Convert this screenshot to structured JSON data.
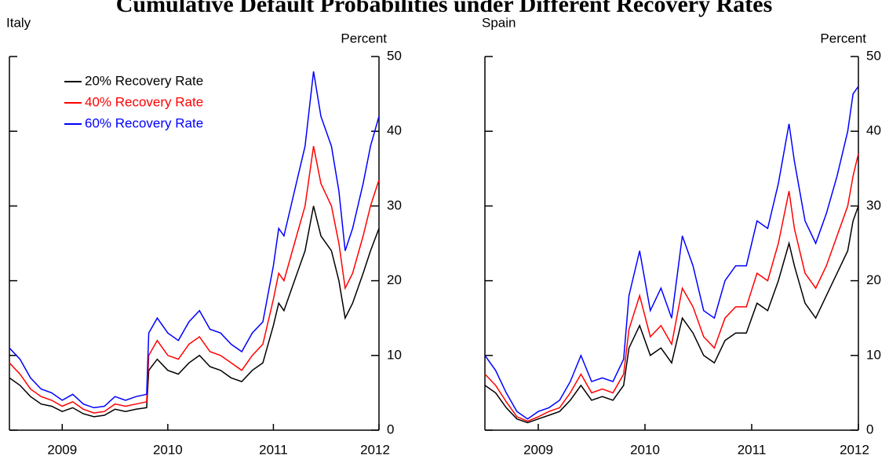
{
  "title": "Cumulative Default Probabilities under Different Recovery Rates",
  "chart_data": [
    {
      "type": "line",
      "title": "Italy",
      "y_label": "Percent",
      "xlim": [
        2008.5,
        2012.0
      ],
      "xticks": [
        2009,
        2010,
        2011,
        2012
      ],
      "ylim": [
        0,
        50
      ],
      "yticks": [
        0,
        10,
        20,
        30,
        40,
        50
      ],
      "legend": "upper left",
      "x": [
        2008.5,
        2008.6,
        2008.7,
        2008.8,
        2008.9,
        2009.0,
        2009.1,
        2009.2,
        2009.3,
        2009.4,
        2009.5,
        2009.6,
        2009.7,
        2009.8,
        2009.82,
        2009.9,
        2010.0,
        2010.1,
        2010.2,
        2010.3,
        2010.4,
        2010.5,
        2010.6,
        2010.7,
        2010.8,
        2010.9,
        2011.0,
        2011.05,
        2011.1,
        2011.2,
        2011.3,
        2011.38,
        2011.45,
        2011.55,
        2011.62,
        2011.68,
        2011.75,
        2011.85,
        2011.92,
        2012.0
      ],
      "series": [
        {
          "name": "20% Recovery Rate",
          "color": "#000000",
          "values": [
            7,
            6,
            4.5,
            3.5,
            3.2,
            2.5,
            3,
            2.2,
            1.8,
            2,
            2.8,
            2.5,
            2.8,
            3,
            8,
            9.5,
            8,
            7.5,
            9,
            10,
            8.5,
            8,
            7,
            6.5,
            8,
            9,
            14,
            17,
            16,
            20,
            24,
            30,
            26,
            24,
            20,
            15,
            17,
            21,
            24,
            27
          ]
        },
        {
          "name": "40% Recovery Rate",
          "color": "#ff0000",
          "values": [
            9,
            7.5,
            5.5,
            4.5,
            4,
            3.2,
            3.8,
            2.8,
            2.3,
            2.5,
            3.5,
            3.2,
            3.5,
            3.8,
            10,
            12,
            10,
            9.5,
            11.5,
            12.5,
            10.5,
            10,
            9,
            8,
            10,
            11.5,
            17.5,
            21,
            20,
            25,
            30,
            38,
            33,
            30,
            25,
            19,
            21,
            26,
            30,
            33.5
          ]
        },
        {
          "name": "60% Recovery Rate",
          "color": "#0000ff",
          "values": [
            11,
            9.5,
            7,
            5.5,
            5,
            4,
            4.8,
            3.5,
            3,
            3.2,
            4.5,
            4,
            4.5,
            4.8,
            13,
            15,
            13,
            12,
            14.5,
            16,
            13.5,
            13,
            11.5,
            10.5,
            13,
            14.5,
            22,
            27,
            26,
            32,
            38,
            48,
            42,
            38,
            32,
            24,
            27,
            33,
            38,
            42
          ]
        }
      ]
    },
    {
      "type": "line",
      "title": "Spain",
      "y_label": "Percent",
      "xlim": [
        2008.5,
        2012.0
      ],
      "xticks": [
        2009,
        2010,
        2011,
        2012
      ],
      "ylim": [
        0,
        50
      ],
      "yticks": [
        0,
        10,
        20,
        30,
        40,
        50
      ],
      "x": [
        2008.5,
        2008.6,
        2008.7,
        2008.8,
        2008.9,
        2009.0,
        2009.1,
        2009.2,
        2009.3,
        2009.4,
        2009.5,
        2009.6,
        2009.7,
        2009.8,
        2009.85,
        2009.95,
        2010.05,
        2010.15,
        2010.25,
        2010.35,
        2010.45,
        2010.55,
        2010.65,
        2010.75,
        2010.85,
        2010.95,
        2011.05,
        2011.15,
        2011.25,
        2011.35,
        2011.4,
        2011.5,
        2011.6,
        2011.7,
        2011.8,
        2011.9,
        2011.95,
        2012.0
      ],
      "series": [
        {
          "color": "#000000",
          "values": [
            6,
            5,
            3,
            1.5,
            1,
            1.5,
            2,
            2.5,
            4,
            6,
            4,
            4.5,
            4,
            6,
            11,
            14,
            10,
            11,
            9,
            15,
            13,
            10,
            9,
            12,
            13,
            13,
            17,
            16,
            20,
            25,
            22,
            17,
            15,
            18,
            21,
            24,
            28,
            30
          ]
        },
        {
          "color": "#ff0000",
          "values": [
            7.5,
            6,
            3.8,
            1.8,
            1.2,
            1.8,
            2.5,
            3,
            5,
            7.5,
            5,
            5.5,
            5,
            7.5,
            13.5,
            18,
            12.5,
            14,
            11.5,
            19,
            16.5,
            12.5,
            11,
            15,
            16.5,
            16.5,
            21,
            20,
            25,
            32,
            27,
            21,
            19,
            22,
            26,
            30,
            34,
            37
          ]
        },
        {
          "color": "#0000ff",
          "values": [
            10,
            8,
            5,
            2.5,
            1.5,
            2.5,
            3,
            4,
            6.5,
            10,
            6.5,
            7,
            6.5,
            9.5,
            18,
            24,
            16,
            19,
            15,
            26,
            22,
            16,
            15,
            20,
            22,
            22,
            28,
            27,
            33,
            41,
            36,
            28,
            25,
            29,
            34,
            40,
            45,
            46
          ]
        }
      ]
    }
  ]
}
